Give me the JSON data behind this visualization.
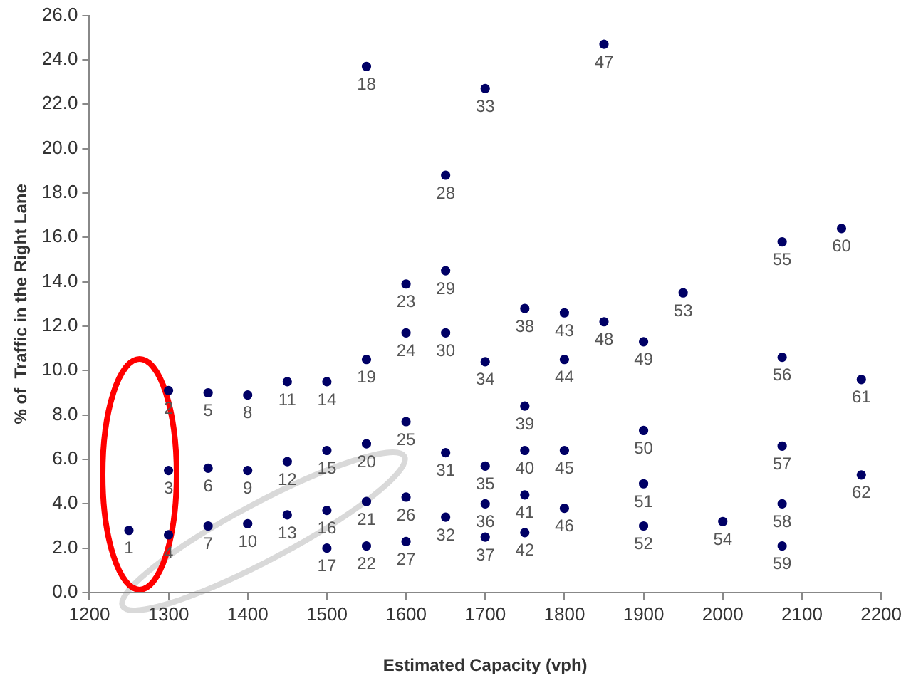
{
  "chart_data": {
    "type": "scatter",
    "xlabel": "Estimated Capacity (vph)",
    "ylabel": "% of  Traffic in the Right Lane",
    "xlim": [
      1200,
      2200
    ],
    "xticks": [
      1200,
      1300,
      1400,
      1500,
      1600,
      1700,
      1800,
      1900,
      2000,
      2100,
      2200
    ],
    "ylim": [
      0,
      26
    ],
    "yticks": [
      {
        "value": 0,
        "label": "0.0"
      },
      {
        "value": 2,
        "label": "2.0"
      },
      {
        "value": 4,
        "label": "4.0"
      },
      {
        "value": 6,
        "label": "6.0"
      },
      {
        "value": 8,
        "label": "8.0"
      },
      {
        "value": 10,
        "label": "10.0"
      },
      {
        "value": 12,
        "label": "12.0"
      },
      {
        "value": 14,
        "label": "14.0"
      },
      {
        "value": 16,
        "label": "16.0"
      },
      {
        "value": 18,
        "label": "18.0"
      },
      {
        "value": 20,
        "label": "20.0"
      },
      {
        "value": 22,
        "label": "22.0"
      },
      {
        "value": 24,
        "label": "24.0"
      },
      {
        "value": 26,
        "label": "26.0"
      }
    ],
    "grid": false,
    "legend": false,
    "marker": "circle",
    "series": [
      {
        "color": "#000066",
        "x": [
          1250,
          1300,
          1300,
          1300,
          1350,
          1350,
          1350,
          1400,
          1400,
          1400,
          1450,
          1450,
          1450,
          1500,
          1500,
          1500,
          1500,
          1550,
          1550,
          1550,
          1550,
          1550,
          1600,
          1600,
          1600,
          1600,
          1600,
          1650,
          1650,
          1650,
          1650,
          1650,
          1700,
          1700,
          1700,
          1700,
          1700,
          1750,
          1750,
          1750,
          1750,
          1750,
          1800,
          1800,
          1800,
          1800,
          1850,
          1850,
          1900,
          1900,
          1900,
          1900,
          1950,
          2000,
          2075,
          2075,
          2075,
          2075,
          2075,
          2150,
          2175,
          2175
        ],
        "values": [
          2.8,
          9.1,
          5.5,
          2.6,
          9.0,
          5.6,
          3.0,
          8.9,
          5.5,
          3.1,
          9.5,
          5.9,
          3.5,
          9.5,
          6.4,
          3.7,
          2.0,
          23.7,
          10.5,
          6.7,
          4.1,
          2.1,
          13.9,
          11.7,
          7.7,
          4.3,
          2.3,
          18.8,
          14.5,
          11.7,
          6.3,
          3.4,
          22.7,
          10.4,
          5.7,
          4.0,
          2.5,
          12.8,
          8.4,
          6.4,
          4.4,
          2.7,
          12.6,
          10.5,
          6.4,
          3.8,
          24.7,
          12.2,
          11.3,
          7.3,
          4.9,
          3.0,
          13.5,
          3.2,
          15.8,
          10.6,
          6.6,
          4.0,
          2.1,
          16.4,
          9.6,
          5.3
        ]
      }
    ],
    "annotations": [
      {
        "text": "1",
        "x": 1250,
        "y": 2.8
      },
      {
        "text": "2",
        "x": 1300,
        "y": 9.1
      },
      {
        "text": "3",
        "x": 1300,
        "y": 5.5
      },
      {
        "text": "4",
        "x": 1300,
        "y": 2.6
      },
      {
        "text": "5",
        "x": 1350,
        "y": 9.0
      },
      {
        "text": "6",
        "x": 1350,
        "y": 5.6
      },
      {
        "text": "7",
        "x": 1350,
        "y": 3.0
      },
      {
        "text": "8",
        "x": 1400,
        "y": 8.9
      },
      {
        "text": "9",
        "x": 1400,
        "y": 5.5
      },
      {
        "text": "10",
        "x": 1400,
        "y": 3.1
      },
      {
        "text": "11",
        "x": 1450,
        "y": 9.5
      },
      {
        "text": "12",
        "x": 1450,
        "y": 5.9
      },
      {
        "text": "13",
        "x": 1450,
        "y": 3.5
      },
      {
        "text": "14",
        "x": 1500,
        "y": 9.5
      },
      {
        "text": "15",
        "x": 1500,
        "y": 6.4
      },
      {
        "text": "16",
        "x": 1500,
        "y": 3.7
      },
      {
        "text": "17",
        "x": 1500,
        "y": 2.0
      },
      {
        "text": "18",
        "x": 1550,
        "y": 23.7
      },
      {
        "text": "19",
        "x": 1550,
        "y": 10.5
      },
      {
        "text": "20",
        "x": 1550,
        "y": 6.7
      },
      {
        "text": "21",
        "x": 1550,
        "y": 4.1
      },
      {
        "text": "22",
        "x": 1550,
        "y": 2.1
      },
      {
        "text": "23",
        "x": 1600,
        "y": 13.9
      },
      {
        "text": "24",
        "x": 1600,
        "y": 11.7
      },
      {
        "text": "25",
        "x": 1600,
        "y": 7.7
      },
      {
        "text": "26",
        "x": 1600,
        "y": 4.3
      },
      {
        "text": "27",
        "x": 1600,
        "y": 2.3
      },
      {
        "text": "28",
        "x": 1650,
        "y": 18.8
      },
      {
        "text": "29",
        "x": 1650,
        "y": 14.5
      },
      {
        "text": "30",
        "x": 1650,
        "y": 11.7
      },
      {
        "text": "31",
        "x": 1650,
        "y": 6.3
      },
      {
        "text": "32",
        "x": 1650,
        "y": 3.4
      },
      {
        "text": "33",
        "x": 1700,
        "y": 22.7
      },
      {
        "text": "34",
        "x": 1700,
        "y": 10.4
      },
      {
        "text": "35",
        "x": 1700,
        "y": 5.7
      },
      {
        "text": "36",
        "x": 1700,
        "y": 4.0
      },
      {
        "text": "37",
        "x": 1700,
        "y": 2.5
      },
      {
        "text": "38",
        "x": 1750,
        "y": 12.8
      },
      {
        "text": "39",
        "x": 1750,
        "y": 8.4
      },
      {
        "text": "40",
        "x": 1750,
        "y": 6.4
      },
      {
        "text": "41",
        "x": 1750,
        "y": 4.4
      },
      {
        "text": "42",
        "x": 1750,
        "y": 2.7
      },
      {
        "text": "43",
        "x": 1800,
        "y": 12.6
      },
      {
        "text": "44",
        "x": 1800,
        "y": 10.5
      },
      {
        "text": "45",
        "x": 1800,
        "y": 6.4
      },
      {
        "text": "46",
        "x": 1800,
        "y": 3.8
      },
      {
        "text": "47",
        "x": 1850,
        "y": 24.7
      },
      {
        "text": "48",
        "x": 1850,
        "y": 12.2
      },
      {
        "text": "49",
        "x": 1900,
        "y": 11.3
      },
      {
        "text": "50",
        "x": 1900,
        "y": 7.3
      },
      {
        "text": "51",
        "x": 1900,
        "y": 4.9
      },
      {
        "text": "52",
        "x": 1900,
        "y": 3.0
      },
      {
        "text": "53",
        "x": 1950,
        "y": 13.5
      },
      {
        "text": "54",
        "x": 2000,
        "y": 3.2
      },
      {
        "text": "55",
        "x": 2075,
        "y": 15.8
      },
      {
        "text": "56",
        "x": 2075,
        "y": 10.6
      },
      {
        "text": "57",
        "x": 2075,
        "y": 6.6
      },
      {
        "text": "58",
        "x": 2075,
        "y": 4.0
      },
      {
        "text": "59",
        "x": 2075,
        "y": 2.1
      },
      {
        "text": "60",
        "x": 2150,
        "y": 16.4
      },
      {
        "text": "61",
        "x": 2175,
        "y": 9.6
      },
      {
        "text": "62",
        "x": 2175,
        "y": 5.3
      }
    ]
  }
}
